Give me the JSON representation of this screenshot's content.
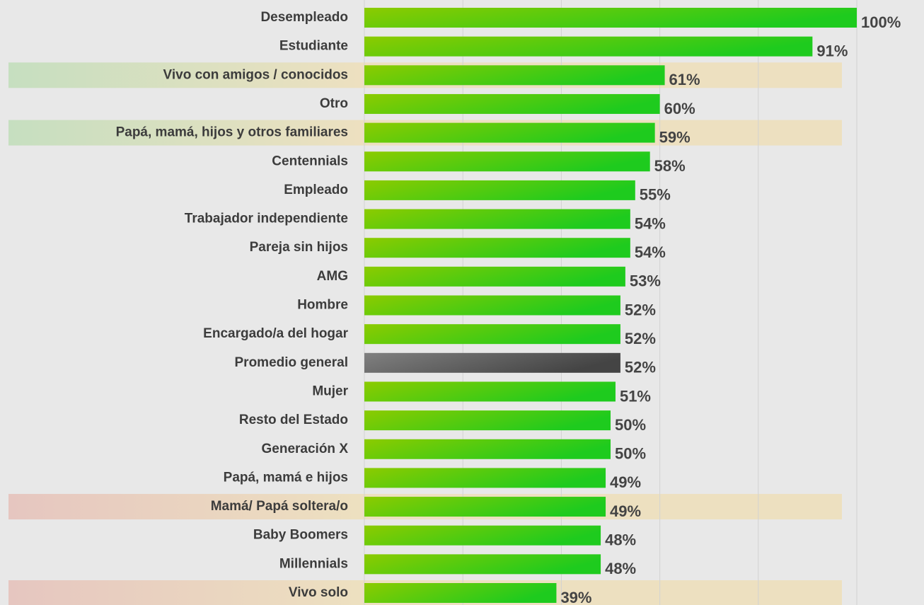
{
  "chart_data": {
    "type": "hbar",
    "categories": [
      "Desempleado",
      "Estudiante",
      "Vivo con amigos / conocidos",
      "Otro",
      "Papá, mamá, hijos y otros familiares",
      "Centennials",
      "Empleado",
      "Trabajador independiente",
      "Pareja sin hijos",
      "AMG",
      "Hombre",
      "Encargado/a del hogar",
      "Promedio general",
      "Mujer",
      "Resto del Estado",
      "Generación X",
      "Papá, mamá e hijos",
      "Mamá/ Papá soltera/o",
      "Baby Boomers",
      "Millennials",
      "Vivo solo"
    ],
    "values": [
      100,
      91,
      61,
      60,
      59,
      58,
      55,
      54,
      54,
      53,
      52,
      52,
      52,
      51,
      50,
      50,
      49,
      49,
      48,
      48,
      39
    ],
    "value_labels": [
      "100%",
      "91%",
      "61%",
      "60%",
      "59%",
      "58%",
      "55%",
      "54%",
      "54%",
      "53%",
      "52%",
      "52%",
      "52%",
      "51%",
      "50%",
      "50%",
      "49%",
      "49%",
      "48%",
      "48%",
      "39%"
    ],
    "colors": [
      [
        "#8ccb00",
        "#1ecb1e"
      ],
      [
        "#8ccb00",
        "#1ecb1e"
      ],
      [
        "#8ccb00",
        "#1ecb1e"
      ],
      [
        "#8ccb00",
        "#1ecb1e"
      ],
      [
        "#8ccb00",
        "#1ecb1e"
      ],
      [
        "#8ccb00",
        "#1ecb1e"
      ],
      [
        "#8ccb00",
        "#1ecb1e"
      ],
      [
        "#8ccb00",
        "#1ecb1e"
      ],
      [
        "#8ccb00",
        "#1ecb1e"
      ],
      [
        "#8ccb00",
        "#1ecb1e"
      ],
      [
        "#8ccb00",
        "#1ecb1e"
      ],
      [
        "#8ccb00",
        "#1ecb1e"
      ],
      [
        "#808080",
        "#444444"
      ],
      [
        "#8ccb00",
        "#1ecb1e"
      ],
      [
        "#8ccb00",
        "#1ecb1e"
      ],
      [
        "#8ccb00",
        "#1ecb1e"
      ],
      [
        "#8ccb00",
        "#1ecb1e"
      ],
      [
        "#8ccb00",
        "#1ecb1e"
      ],
      [
        "#8ccb00",
        "#1ecb1e"
      ],
      [
        "#8ccb00",
        "#1ecb1e"
      ],
      [
        "#8ccb00",
        "#1ecb1e"
      ]
    ],
    "row_highlights": [
      null,
      null,
      "#c6dfc0",
      null,
      "#c6dfc0",
      null,
      null,
      null,
      null,
      null,
      null,
      null,
      null,
      null,
      null,
      null,
      null,
      "#e6c6c0",
      null,
      null,
      "#e6c6c0"
    ],
    "highlight_base": "#ede0c0",
    "xlim": [
      0,
      100
    ],
    "xticks": [
      0,
      20,
      40,
      60,
      80,
      100
    ],
    "grid": true
  }
}
